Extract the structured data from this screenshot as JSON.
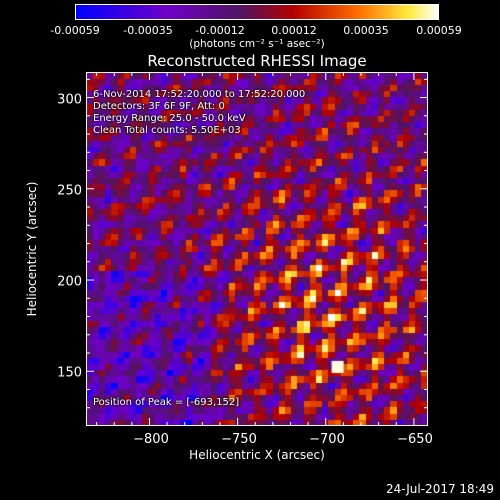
{
  "colorbar": {
    "ticks": [
      "-0.00059",
      "-0.00035",
      "-0.00012",
      "0.00012",
      "0.00035",
      "0.00059"
    ],
    "unit_label": "(photons cm⁻² s⁻¹ asec⁻²)",
    "range": [
      -0.00059,
      0.00059
    ]
  },
  "chart_data": {
    "type": "heatmap",
    "title": "Reconstructed RHESSI Image",
    "xlabel": "Heliocentric X (arcsec)",
    "ylabel": "Heliocentric Y (arcsec)",
    "xlim": [
      -836,
      -642
    ],
    "ylim": [
      120,
      314
    ],
    "xticks": [
      -800,
      -750,
      -700,
      -650
    ],
    "xtick_labels": [
      "−800",
      "−750",
      "−700",
      "−650"
    ],
    "yticks": [
      150,
      200,
      250,
      300
    ],
    "ytick_labels": [
      "150",
      "200",
      "250",
      "300"
    ],
    "colormap": "blue-purple-red-yellow-white",
    "peak": [
      -693,
      152
    ],
    "annotations": [
      "6-Nov-2014 17:52:20.000 to 17:52:20.000",
      "Detectors: 3F 6F 9F, Att: 0",
      "Energy Range: 25.0 - 50.0 keV",
      "Clean    Total counts: 5.50E+03",
      "Position of Peak = [-693,152]"
    ]
  },
  "footer": {
    "timestamp": "24-Jul-2017 18:49"
  }
}
